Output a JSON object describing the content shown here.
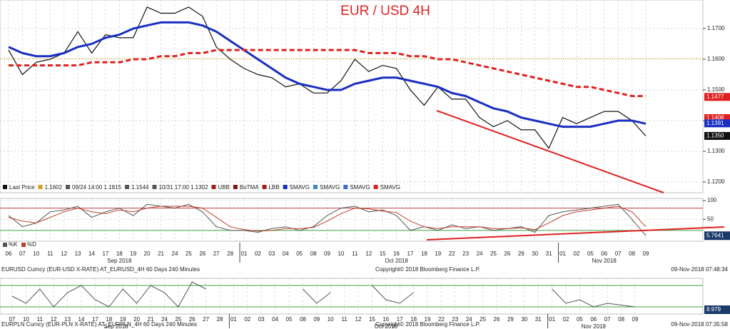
{
  "chart_data": [
    {
      "type": "line",
      "title": "EUR / USD 4H",
      "x": [
        "06",
        "07",
        "10",
        "11",
        "12",
        "13",
        "14",
        "17",
        "18",
        "19",
        "20",
        "21",
        "24",
        "25",
        "26",
        "27",
        "28",
        "01",
        "02",
        "03",
        "04",
        "05",
        "08",
        "09",
        "10",
        "11",
        "12",
        "15",
        "16",
        "17",
        "18",
        "19",
        "22",
        "23",
        "24",
        "25",
        "26",
        "29",
        "30",
        "31",
        "01",
        "02",
        "05",
        "06",
        "07",
        "08",
        "09"
      ],
      "months": [
        "Sep 2018",
        "Oct 2018",
        "Nov 2018"
      ],
      "ylim": [
        1.1165,
        1.1793
      ],
      "yticks": [
        {
          "value": 1.12,
          "label": "1.1200"
        },
        {
          "value": 1.13,
          "label": "1.1300"
        },
        {
          "value": 1.14,
          "label": "1.1400"
        },
        {
          "value": 1.15,
          "label": "1.1500"
        },
        {
          "value": 1.16,
          "label": "1.1600"
        },
        {
          "value": 1.17,
          "label": "1.1700"
        }
      ],
      "grid": true,
      "series": [
        {
          "name": "Last Price",
          "color": "#111111",
          "width": 1.2,
          "dash": false,
          "values": [
            1.163,
            1.155,
            1.159,
            1.16,
            1.162,
            1.169,
            1.162,
            1.168,
            1.167,
            1.167,
            1.177,
            1.175,
            1.175,
            1.177,
            1.174,
            1.164,
            1.16,
            1.157,
            1.155,
            1.154,
            1.151,
            1.152,
            1.149,
            1.149,
            1.153,
            1.16,
            1.156,
            1.158,
            1.157,
            1.15,
            1.145,
            1.151,
            1.147,
            1.147,
            1.141,
            1.138,
            1.14,
            1.137,
            1.137,
            1.131,
            1.141,
            1.139,
            1.141,
            1.143,
            1.143,
            1.14,
            1.135
          ]
        },
        {
          "name": "SMAVG",
          "color": "#1a2fc0",
          "width": 3,
          "dash": false,
          "values": [
            1.164,
            1.162,
            1.161,
            1.161,
            1.162,
            1.164,
            1.165,
            1.167,
            1.168,
            1.17,
            1.171,
            1.172,
            1.172,
            1.172,
            1.171,
            1.169,
            1.166,
            1.163,
            1.16,
            1.157,
            1.154,
            1.152,
            1.151,
            1.15,
            1.15,
            1.152,
            1.153,
            1.154,
            1.154,
            1.153,
            1.152,
            1.151,
            1.149,
            1.148,
            1.146,
            1.144,
            1.143,
            1.141,
            1.14,
            1.139,
            1.138,
            1.138,
            1.138,
            1.139,
            1.14,
            1.14,
            1.139
          ]
        },
        {
          "name": "SMAVG",
          "color": "#e02020",
          "width": 3,
          "dash": true,
          "values": [
            1.158,
            1.158,
            1.158,
            1.158,
            1.158,
            1.158,
            1.159,
            1.159,
            1.159,
            1.16,
            1.16,
            1.161,
            1.161,
            1.162,
            1.162,
            1.163,
            1.163,
            1.163,
            1.163,
            1.163,
            1.163,
            1.163,
            1.163,
            1.163,
            1.163,
            1.163,
            1.162,
            1.162,
            1.162,
            1.161,
            1.161,
            1.16,
            1.16,
            1.159,
            1.158,
            1.157,
            1.156,
            1.155,
            1.154,
            1.153,
            1.152,
            1.151,
            1.151,
            1.15,
            1.149,
            1.148,
            1.148
          ]
        }
      ],
      "legend": [
        "Last Price",
        "09/24 14:00 1.1815",
        "1.1544",
        "10/31 17:00 1.1302",
        "UBB",
        "BoTMA",
        "LBB",
        "SMAVG",
        "SMAVG",
        "SMAVG",
        "SMAVG"
      ],
      "ref_line": {
        "value": 1.1602,
        "label": "1.1602",
        "color": "#d4a017"
      },
      "price_tags": [
        {
          "value": 1.1477,
          "label": "1.1477",
          "color": "#e02020"
        },
        {
          "value": 1.1408,
          "label": "1.1408",
          "color": "#e02020"
        },
        {
          "value": 1.1391,
          "label": "1.1391",
          "color": "#1a2fc0"
        },
        {
          "value": 1.135,
          "label": "1.1350",
          "color": "#111111"
        }
      ],
      "footer": [
        "EURUSD Curncy (EUR-USD X-RATE) AT_EURUSD_4H 60 Days 240 Minutes",
        "Copyright© 2018 Bloomberg Finance L.P.",
        "09-Nov-2018 07:48:34"
      ]
    },
    {
      "type": "line",
      "ylim": [
        -9,
        106
      ],
      "yticks": [
        50,
        100
      ],
      "levels": [
        {
          "value": 80,
          "color": "#c04040"
        },
        {
          "value": 20,
          "color": "#3aa040"
        }
      ],
      "series": [
        {
          "name": "%K",
          "color": "#555555",
          "width": 1,
          "dash": false,
          "values": [
            60,
            30,
            40,
            70,
            75,
            85,
            55,
            70,
            80,
            60,
            90,
            85,
            80,
            90,
            70,
            30,
            20,
            20,
            15,
            25,
            30,
            20,
            30,
            60,
            80,
            85,
            70,
            75,
            60,
            20,
            30,
            20,
            35,
            25,
            30,
            20,
            25,
            30,
            15,
            60,
            70,
            75,
            80,
            85,
            90,
            50,
            6
          ]
        },
        {
          "name": "%D",
          "color": "#c0402a",
          "width": 1,
          "dash": false,
          "values": [
            55,
            45,
            40,
            55,
            70,
            80,
            70,
            65,
            75,
            70,
            80,
            85,
            85,
            85,
            80,
            55,
            30,
            22,
            18,
            20,
            25,
            25,
            28,
            45,
            65,
            80,
            78,
            72,
            68,
            45,
            30,
            25,
            30,
            30,
            30,
            25,
            25,
            27,
            22,
            40,
            60,
            70,
            75,
            80,
            85,
            70,
            30
          ]
        }
      ],
      "value_tag": {
        "value": 5.7641,
        "label": "5.7641"
      }
    },
    {
      "type": "line",
      "ylim": [
        0,
        100
      ],
      "x": [
        "07",
        "10",
        "11",
        "12",
        "13",
        "14",
        "17",
        "18",
        "19",
        "20",
        "21",
        "24",
        "25",
        "26",
        "27",
        "28",
        "01",
        "02",
        "03",
        "04",
        "05",
        "08",
        "09",
        "10",
        "11",
        "12",
        "15",
        "16",
        "17",
        "18",
        "19",
        "22",
        "23",
        "24",
        "25",
        "26",
        "29",
        "30",
        "31",
        "01",
        "02",
        "05",
        "06",
        "07",
        "08",
        "09"
      ],
      "months": [
        "Sep 2018",
        "Oct 2018",
        "Nov 2018"
      ],
      "levels": [
        {
          "value": 80,
          "color": "#3aa040"
        },
        {
          "value": 20,
          "color": "#3aa040"
        }
      ],
      "series": [
        {
          "name": "%K",
          "color": "#555555",
          "width": 1,
          "dash": false,
          "values": [
            50,
            30,
            70,
            20,
            60,
            80,
            40,
            20,
            70,
            30,
            80,
            60,
            20,
            90,
            70,
            null,
            null,
            null,
            null,
            null,
            null,
            70,
            30,
            60,
            null,
            null,
            80,
            40,
            30,
            60,
            null,
            null,
            null,
            null,
            null,
            null,
            null,
            null,
            null,
            70,
            30,
            40,
            20,
            30,
            25,
            20
          ]
        }
      ],
      "value_tag": {
        "value": 8.979,
        "label": "8.979"
      },
      "footer": [
        "EURPLN Curncy (EUR-PLN X-RATE) AT_EURPLN_4H 60 Days 240 Minutes",
        "Copyright© 2018 Bloomberg Finance L.P.",
        "09-Nov-2018 07:35:58"
      ]
    }
  ]
}
